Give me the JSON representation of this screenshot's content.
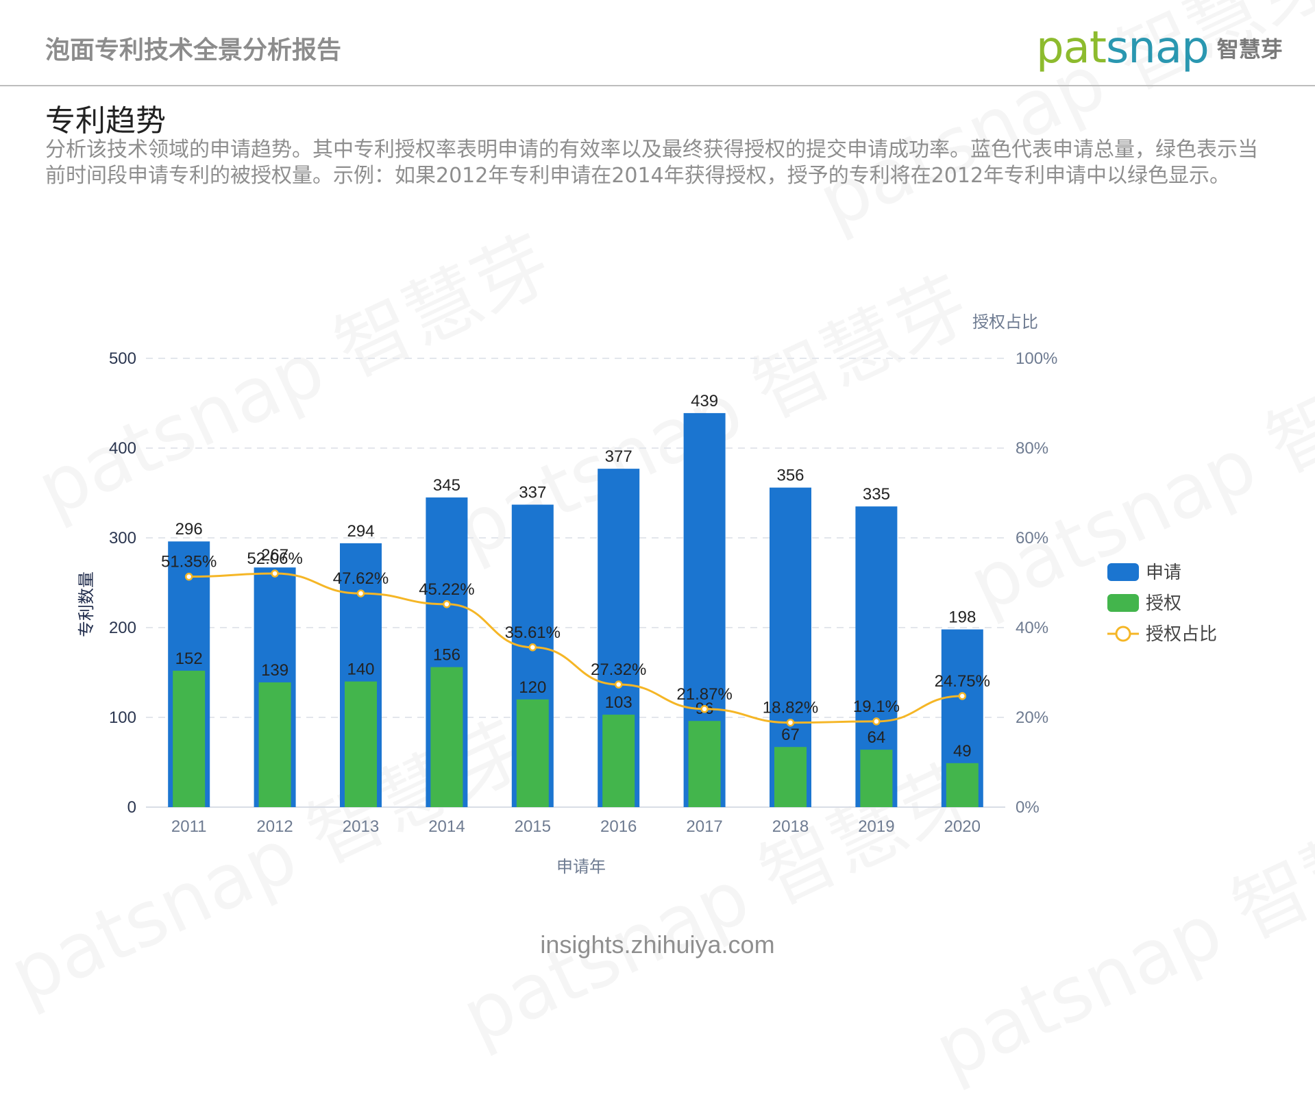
{
  "header": {
    "report_title": "泡面专利技术全景分析报告",
    "logo": {
      "pat": "pat",
      "snap": "snap",
      "cn": "智慧芽"
    }
  },
  "section": {
    "title": "专利趋势",
    "description": "分析该技术领域的申请趋势。其中专利授权率表明申请的有效率以及最终获得授权的提交申请成功率。蓝色代表申请总量，绿色表示当前时间段申请专利的被授权量。示例：如果2012年专利申请在2014年获得授权，授予的专利将在2012年专利申请中以绿色显示。"
  },
  "watermark": {
    "text": "patsnap 智慧芽"
  },
  "footer": {
    "url": "insights.zhihuiya.com"
  },
  "colors": {
    "applications": "#1b75d0",
    "grants": "#43b54c",
    "grant_ratio": "#f5b626",
    "axis_text": "#6e7b91",
    "label_text": "#222222",
    "grid": "#e3e6ec"
  },
  "chart_data": {
    "type": "bar",
    "title": "专利趋势",
    "xlabel": "申请年",
    "ylabel": "专利数量",
    "y2label": "授权占比",
    "categories": [
      "2011",
      "2012",
      "2013",
      "2014",
      "2015",
      "2016",
      "2017",
      "2018",
      "2019",
      "2020"
    ],
    "series": [
      {
        "name": "申请",
        "type": "bar",
        "axis": "left",
        "values": [
          296,
          267,
          294,
          345,
          337,
          377,
          439,
          356,
          335,
          198
        ]
      },
      {
        "name": "授权",
        "type": "bar",
        "axis": "left",
        "values": [
          152,
          139,
          140,
          156,
          120,
          103,
          96,
          67,
          64,
          49
        ]
      },
      {
        "name": "授权占比",
        "type": "line",
        "axis": "right",
        "values": [
          51.35,
          52.06,
          47.62,
          45.22,
          35.61,
          27.32,
          21.87,
          18.82,
          19.1,
          24.75
        ],
        "labels": [
          "51.35%",
          "52.06%",
          "47.62%",
          "45.22%",
          "35.61%",
          "27.32%",
          "21.87%",
          "18.82%",
          "19.1%",
          "24.75%"
        ]
      }
    ],
    "ylim": [
      0,
      500
    ],
    "yticks": [
      "0",
      "100",
      "200",
      "300",
      "400",
      "500"
    ],
    "y2lim": [
      0,
      100
    ],
    "y2ticks": [
      "0%",
      "20%",
      "40%",
      "60%",
      "80%",
      "100%"
    ],
    "grid": true,
    "legend": {
      "position": "right",
      "items": [
        "申请",
        "授权",
        "授权占比"
      ]
    }
  }
}
